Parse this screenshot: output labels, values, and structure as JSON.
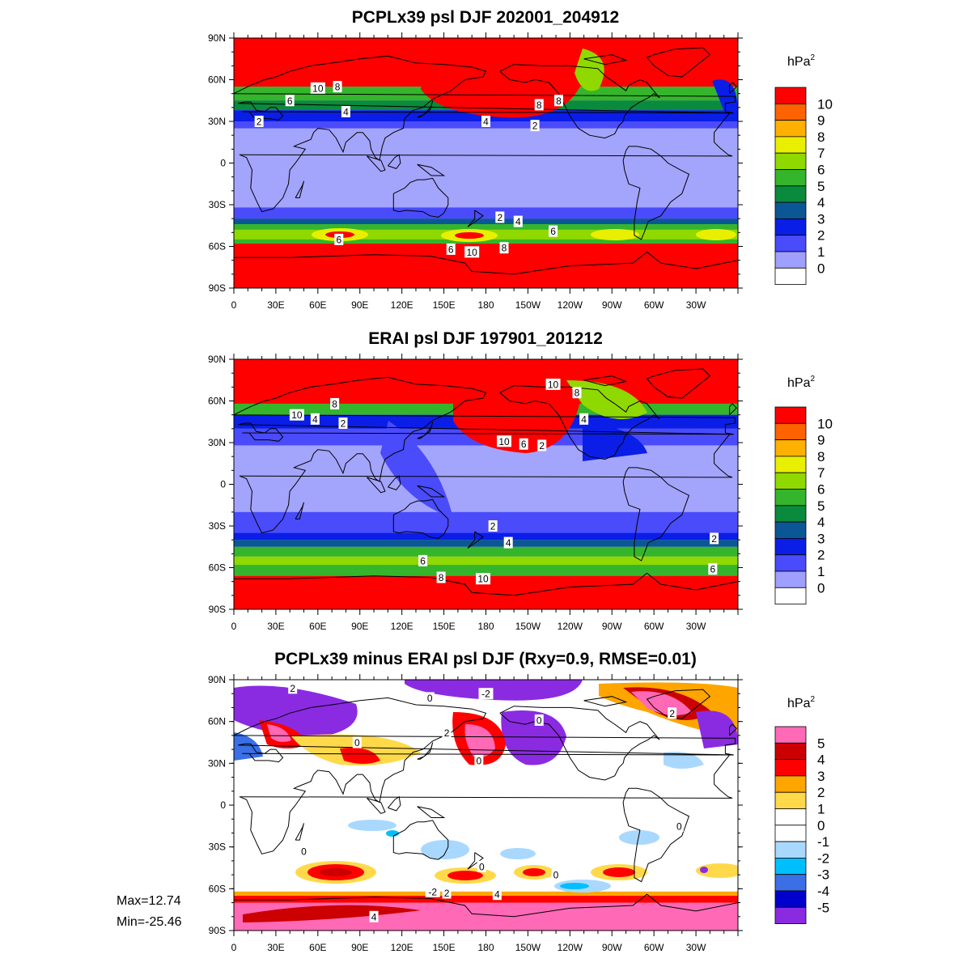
{
  "panels": [
    {
      "title": "PCPLx39 psl DJF 202001_204912",
      "unit": "hPa",
      "unit_sup": "2",
      "colorbar": {
        "labels": [
          "10",
          "9",
          "8",
          "7",
          "6",
          "5",
          "4",
          "3",
          "2",
          "1",
          "0"
        ],
        "colors": [
          "#fe0000",
          "#ff6200",
          "#ffb000",
          "#e9ef00",
          "#8fd900",
          "#35b52b",
          "#0a8a3c",
          "#0b5796",
          "#0a1ee8",
          "#4a4bfb",
          "#9fa0fd",
          "#ffffff"
        ]
      },
      "map": {
        "fill": "#a3a4fb",
        "bands_deg_lat": [
          {
            "lat0": 90,
            "lat1": 55,
            "color": "#fe0000"
          },
          {
            "lat0": 55,
            "lat1": 45,
            "color": "#35b52b"
          },
          {
            "lat0": 45,
            "lat1": 38,
            "color": "#0a8a3c"
          },
          {
            "lat0": 38,
            "lat1": 30,
            "color": "#0a1ee8"
          },
          {
            "lat0": 30,
            "lat1": 25,
            "color": "#4a4bfb"
          },
          {
            "lat0": -32,
            "lat1": -40,
            "color": "#4a4bfb"
          },
          {
            "lat0": -40,
            "lat1": -44,
            "color": "#0b5796"
          },
          {
            "lat0": -44,
            "lat1": -48,
            "color": "#35b52b"
          },
          {
            "lat0": -48,
            "lat1": -55,
            "color": "#8fd900"
          },
          {
            "lat0": -55,
            "lat1": -58,
            "color": "#35b52b"
          },
          {
            "lat0": -58,
            "lat1": -90,
            "color": "#fe0000"
          }
        ],
        "contour_labels": [
          {
            "text": "10",
            "lon": 60,
            "lat": 54
          },
          {
            "text": "8",
            "lon": 74,
            "lat": 55
          },
          {
            "text": "6",
            "lon": 40,
            "lat": 45
          },
          {
            "text": "4",
            "lon": 80,
            "lat": 37
          },
          {
            "text": "2",
            "lon": 18,
            "lat": 30
          },
          {
            "text": "4",
            "lon": 180,
            "lat": 30
          },
          {
            "text": "2",
            "lon": 215,
            "lat": 27
          },
          {
            "text": "8",
            "lon": 218,
            "lat": 42
          },
          {
            "text": "8",
            "lon": 232,
            "lat": 45
          },
          {
            "text": "2",
            "lon": 190,
            "lat": -39
          },
          {
            "text": "4",
            "lon": 203,
            "lat": -42
          },
          {
            "text": "6",
            "lon": 228,
            "lat": -49
          },
          {
            "text": "6",
            "lon": 75,
            "lat": -55
          },
          {
            "text": "6",
            "lon": 155,
            "lat": -62
          },
          {
            "text": "10",
            "lon": 170,
            "lat": -64
          },
          {
            "text": "8",
            "lon": 193,
            "lat": -61
          }
        ]
      }
    },
    {
      "title": "ERAI psl DJF 197901_201212",
      "unit": "hPa",
      "unit_sup": "2",
      "colorbar": {
        "labels": [
          "10",
          "9",
          "8",
          "7",
          "6",
          "5",
          "4",
          "3",
          "2",
          "1",
          "0"
        ],
        "colors": [
          "#fe0000",
          "#ff6200",
          "#ffb000",
          "#e9ef00",
          "#8fd900",
          "#35b52b",
          "#0a8a3c",
          "#0b5796",
          "#0a1ee8",
          "#4a4bfb",
          "#9fa0fd",
          "#ffffff"
        ]
      },
      "map": {
        "fill": "#a3a4fb",
        "bands_deg_lat": [
          {
            "lat0": 90,
            "lat1": 58,
            "color": "#fe0000"
          },
          {
            "lat0": 58,
            "lat1": 50,
            "color": "#35b52b"
          },
          {
            "lat0": 50,
            "lat1": 40,
            "color": "#0a1ee8"
          },
          {
            "lat0": 40,
            "lat1": 28,
            "color": "#4a4bfb"
          },
          {
            "lat0": -20,
            "lat1": -35,
            "color": "#4a4bfb"
          },
          {
            "lat0": -35,
            "lat1": -40,
            "color": "#0a1ee8"
          },
          {
            "lat0": -40,
            "lat1": -45,
            "color": "#0b5796"
          },
          {
            "lat0": -45,
            "lat1": -52,
            "color": "#35b52b"
          },
          {
            "lat0": -52,
            "lat1": -58,
            "color": "#8fd900"
          },
          {
            "lat0": -58,
            "lat1": -66,
            "color": "#35b52b"
          },
          {
            "lat0": -66,
            "lat1": -90,
            "color": "#fe0000"
          }
        ],
        "contour_labels": [
          {
            "text": "8",
            "lon": 72,
            "lat": 58
          },
          {
            "text": "10",
            "lon": 45,
            "lat": 50
          },
          {
            "text": "4",
            "lon": 58,
            "lat": 47
          },
          {
            "text": "2",
            "lon": 78,
            "lat": 44
          },
          {
            "text": "10",
            "lon": 228,
            "lat": 72
          },
          {
            "text": "8",
            "lon": 245,
            "lat": 66
          },
          {
            "text": "4",
            "lon": 250,
            "lat": 47
          },
          {
            "text": "10",
            "lon": 193,
            "lat": 31
          },
          {
            "text": "6",
            "lon": 207,
            "lat": 29
          },
          {
            "text": "2",
            "lon": 220,
            "lat": 28
          },
          {
            "text": "2",
            "lon": 185,
            "lat": -30
          },
          {
            "text": "4",
            "lon": 196,
            "lat": -42
          },
          {
            "text": "2",
            "lon": 343,
            "lat": -39
          },
          {
            "text": "6",
            "lon": 135,
            "lat": -55
          },
          {
            "text": "6",
            "lon": 342,
            "lat": -61
          },
          {
            "text": "8",
            "lon": 148,
            "lat": -67
          },
          {
            "text": "10",
            "lon": 178,
            "lat": -68
          }
        ]
      }
    },
    {
      "title": "PCPLx39 minus ERAI psl DJF (Rxy=0.9, RMSE=0.01)",
      "unit": "hPa",
      "unit_sup": "2",
      "colorbar": {
        "labels": [
          "5",
          "4",
          "3",
          "2",
          "1",
          "0",
          "-1",
          "-2",
          "-3",
          "-4",
          "-5"
        ],
        "colors": [
          "#ff69b6",
          "#cc0000",
          "#ff0000",
          "#ffa500",
          "#ffd94a",
          "#ffffff",
          "#ffffff",
          "#a9d8ff",
          "#00bfff",
          "#3a6fe6",
          "#0000cc",
          "#8a2be2"
        ]
      },
      "map": {
        "fill": "#ffffff",
        "bands_deg_lat": [
          {
            "lat0": -70,
            "lat1": -90,
            "color": "#ff69b6"
          },
          {
            "lat0": -65,
            "lat1": -70,
            "color": "#ff0000"
          },
          {
            "lat0": -62,
            "lat1": -65,
            "color": "#ffa500"
          }
        ],
        "contour_labels": [
          {
            "text": "2",
            "lon": 42,
            "lat": 84
          },
          {
            "text": "0",
            "lon": 140,
            "lat": 77
          },
          {
            "text": "-2",
            "lon": 180,
            "lat": 80
          },
          {
            "text": "2",
            "lon": 152,
            "lat": 52
          },
          {
            "text": "0",
            "lon": 175,
            "lat": 32
          },
          {
            "text": "0",
            "lon": 88,
            "lat": 45
          },
          {
            "text": "0",
            "lon": 218,
            "lat": 61
          },
          {
            "text": "2",
            "lon": 313,
            "lat": 66
          },
          {
            "text": "0",
            "lon": 318,
            "lat": -15
          },
          {
            "text": "0",
            "lon": 50,
            "lat": -33
          },
          {
            "text": "0",
            "lon": 177,
            "lat": -44
          },
          {
            "text": "0",
            "lon": 230,
            "lat": -50
          },
          {
            "text": "-2",
            "lon": 142,
            "lat": -62
          },
          {
            "text": "2",
            "lon": 152,
            "lat": -63
          },
          {
            "text": "4",
            "lon": 188,
            "lat": -64
          },
          {
            "text": "4",
            "lon": 100,
            "lat": -80
          }
        ]
      }
    }
  ],
  "lat_ticks": [
    "90N",
    "60N",
    "30N",
    "0",
    "30S",
    "60S",
    "90S"
  ],
  "lon_ticks": [
    "0",
    "30E",
    "60E",
    "90E",
    "120E",
    "150E",
    "180",
    "150W",
    "120W",
    "90W",
    "60W",
    "30W"
  ],
  "stats": {
    "max": "Max=12.74",
    "min": "Min=-25.46"
  }
}
